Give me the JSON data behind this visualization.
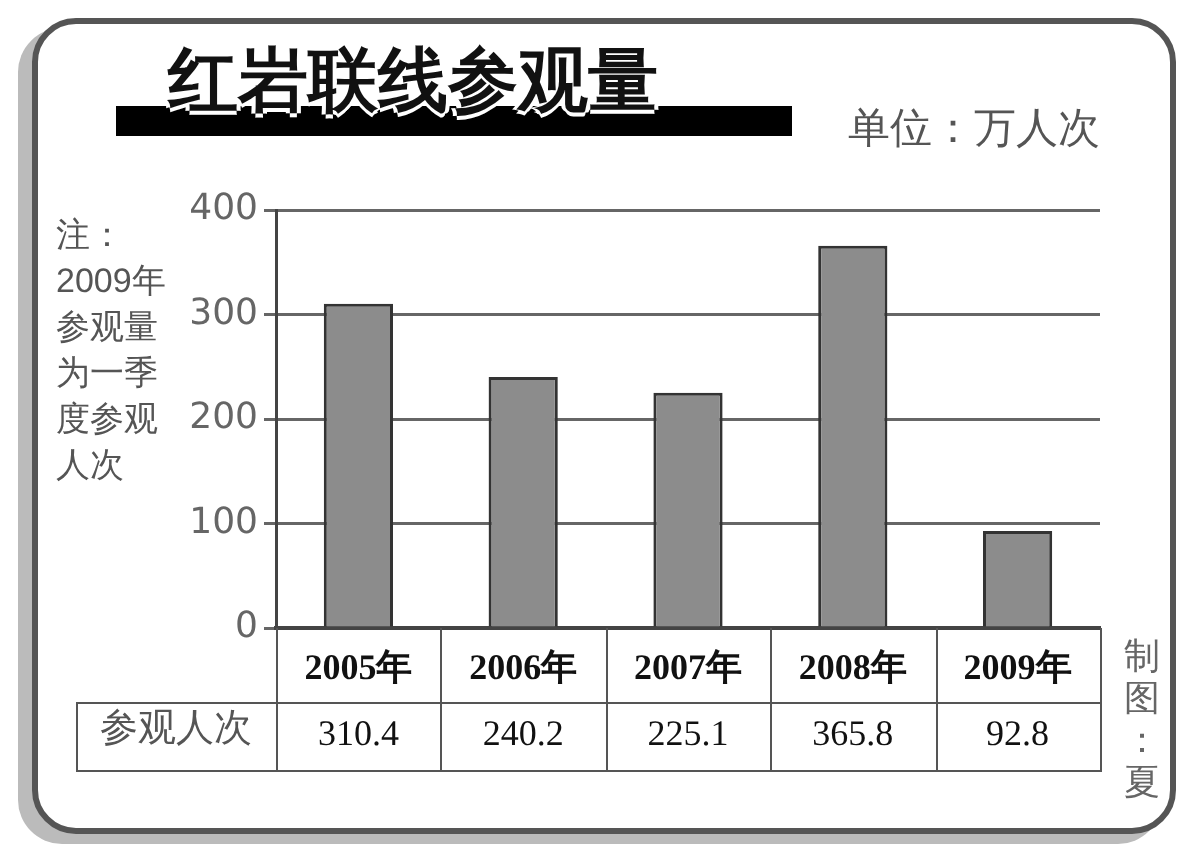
{
  "chart_data": {
    "type": "bar",
    "title": "红岩联线参观量",
    "ylabel": "单位：万人次",
    "categories": [
      "2005年",
      "2006年",
      "2007年",
      "2008年",
      "2009年"
    ],
    "values": [
      310.4,
      240.2,
      225.1,
      365.8,
      92.8
    ],
    "color": "#8c8c8c",
    "ylim": [
      0,
      400
    ],
    "yticks": [
      0,
      100,
      200,
      300,
      400
    ],
    "grid": "y",
    "data_labels": true,
    "annotations": [
      "注：2009年参观量为一季度参观人次",
      "参观人次",
      "制图：夏"
    ]
  }
}
